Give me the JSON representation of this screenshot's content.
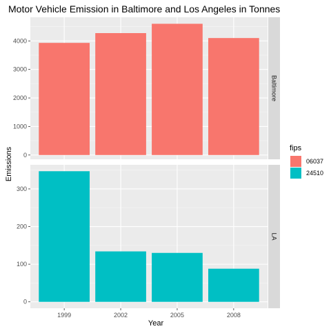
{
  "chart_data": {
    "type": "bar",
    "title": "Motor Vehicle Emission in Baltimore and Los Angeles in Tonnes",
    "xlabel": "Year",
    "ylabel": "Emissions",
    "categories": [
      "1999",
      "2002",
      "2005",
      "2008"
    ],
    "grid": true,
    "legend": {
      "title": "fips",
      "position": "right",
      "entries": [
        {
          "name": "06037",
          "color": "#F8766D"
        },
        {
          "name": "24510",
          "color": "#00BFC4"
        }
      ]
    },
    "panels": [
      {
        "strip": "Baltimore",
        "color": "#F8766D",
        "values": [
          3931,
          4274,
          4601,
          4101
        ],
        "ylim": [
          -150,
          4830
        ],
        "yticks": [
          0,
          1000,
          2000,
          3000,
          4000
        ]
      },
      {
        "strip": "LA",
        "color": "#00BFC4",
        "values": [
          347,
          134,
          130,
          88
        ],
        "ylim": [
          -17,
          364
        ],
        "yticks": [
          0,
          100,
          200,
          300
        ]
      }
    ]
  }
}
